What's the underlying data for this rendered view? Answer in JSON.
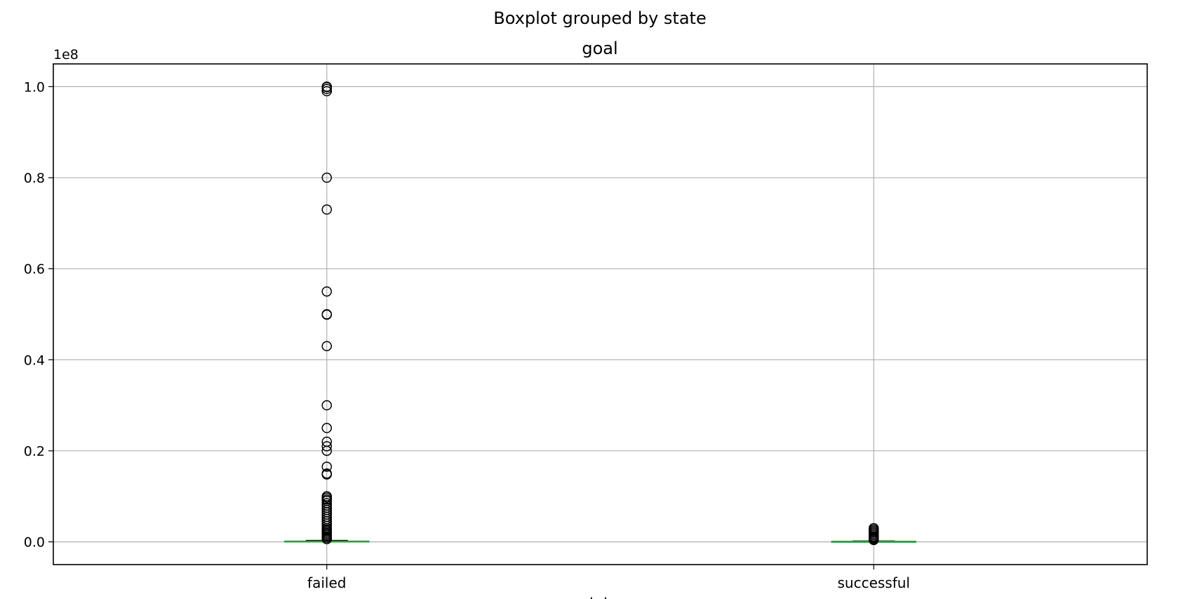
{
  "chart_data": {
    "type": "boxplot",
    "suptitle": "Boxplot grouped by state",
    "title": "goal",
    "xlabel": "state",
    "ylabel": "",
    "offset_label": "1e8",
    "ylim": [
      -0.05,
      1.05
    ],
    "yticks": [
      0.0,
      0.2,
      0.4,
      0.6,
      0.8,
      1.0
    ],
    "ytick_labels": [
      "0.0",
      "0.2",
      "0.4",
      "0.6",
      "0.8",
      "1.0"
    ],
    "grid": true,
    "categories": [
      "failed",
      "successful"
    ],
    "groups": [
      {
        "name": "failed",
        "q1": 0.0,
        "median": 0.0005,
        "q3": 0.0015,
        "whisker_low": 0.0,
        "whisker_high": 0.003,
        "outliers": [
          1.0,
          0.999,
          0.995,
          0.99,
          0.8,
          0.73,
          0.55,
          0.5,
          0.499,
          0.43,
          0.3,
          0.25,
          0.22,
          0.21,
          0.2,
          0.165,
          0.15,
          0.148,
          0.1,
          0.097,
          0.093,
          0.09,
          0.085,
          0.08,
          0.075,
          0.07,
          0.065,
          0.06,
          0.055,
          0.05,
          0.045,
          0.04,
          0.035,
          0.03,
          0.027,
          0.024,
          0.021,
          0.018,
          0.015,
          0.012,
          0.009,
          0.006
        ]
      },
      {
        "name": "successful",
        "q1": 0.0,
        "median": 0.0003,
        "q3": 0.0008,
        "whisker_low": 0.0,
        "whisker_high": 0.0018,
        "outliers": [
          0.03,
          0.027,
          0.024,
          0.021,
          0.018,
          0.015,
          0.012,
          0.01,
          0.008,
          0.006,
          0.004
        ]
      }
    ],
    "colors": {
      "median": "#2ca02c",
      "box": "#1f77b4",
      "grid": "#b0b0b0",
      "outlier": "#000000"
    }
  }
}
